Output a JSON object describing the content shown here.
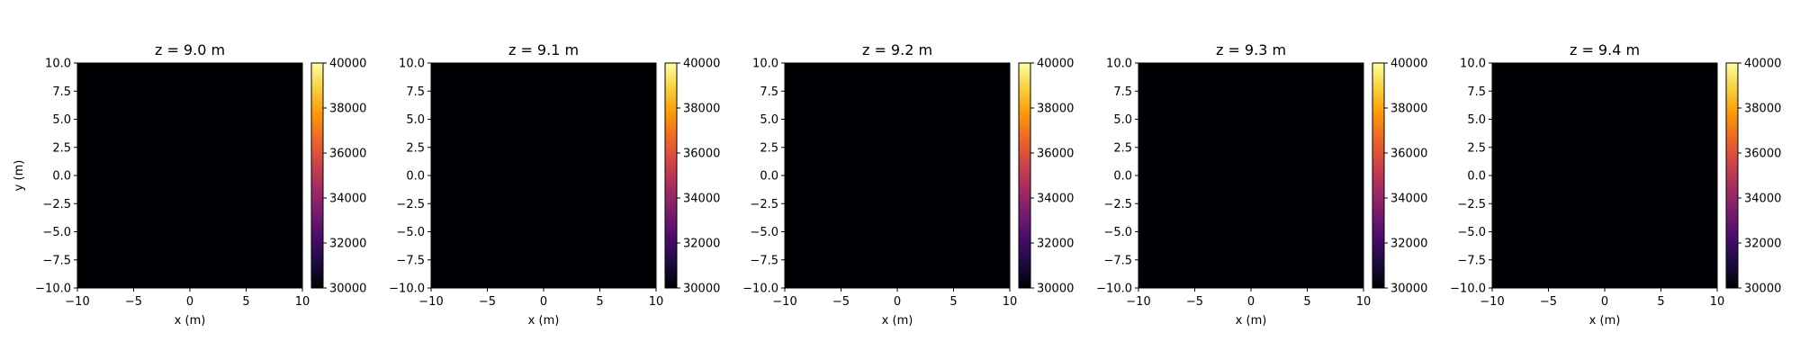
{
  "figure": {
    "type": "heatmap-grid",
    "colormap": "inferno",
    "colormap_stops": [
      "#000004",
      "#1b0c41",
      "#4a0c6b",
      "#781c6d",
      "#a52c60",
      "#cf4446",
      "#ed6925",
      "#fb9b06",
      "#f7d13d",
      "#fcffa4"
    ]
  },
  "chart_data": [
    {
      "type": "heatmap",
      "title": "z = 9.0 m",
      "xlabel": "x (m)",
      "ylabel": "y (m)",
      "xlim": [
        -10,
        10
      ],
      "ylim": [
        -10,
        10
      ],
      "x_ticks": [
        "−10",
        "−5",
        "0",
        "5",
        "10"
      ],
      "y_ticks": [
        "10.0",
        "7.5",
        "5.0",
        "2.5",
        "0.0",
        "−2.5",
        "−5.0",
        "−7.5",
        "−10.0"
      ],
      "fill_color": "#000004",
      "colorbar": {
        "vmin": 30000,
        "vmax": 40000,
        "ticks": [
          "40000",
          "38000",
          "36000",
          "34000",
          "32000",
          "30000"
        ]
      }
    },
    {
      "type": "heatmap",
      "title": "z = 9.1 m",
      "xlabel": "x (m)",
      "ylabel": "",
      "xlim": [
        -10,
        10
      ],
      "ylim": [
        -10,
        10
      ],
      "x_ticks": [
        "−10",
        "−5",
        "0",
        "5",
        "10"
      ],
      "y_ticks": [
        "10.0",
        "7.5",
        "5.0",
        "2.5",
        "0.0",
        "−2.5",
        "−5.0",
        "−7.5",
        "−10.0"
      ],
      "fill_color": "#000004",
      "colorbar": {
        "vmin": 30000,
        "vmax": 40000,
        "ticks": [
          "40000",
          "38000",
          "36000",
          "34000",
          "32000",
          "30000"
        ]
      }
    },
    {
      "type": "heatmap",
      "title": "z = 9.2 m",
      "xlabel": "x (m)",
      "ylabel": "",
      "xlim": [
        -10,
        10
      ],
      "ylim": [
        -10,
        10
      ],
      "x_ticks": [
        "−10",
        "−5",
        "0",
        "5",
        "10"
      ],
      "y_ticks": [
        "10.0",
        "7.5",
        "5.0",
        "2.5",
        "0.0",
        "−2.5",
        "−5.0",
        "−7.5",
        "−10.0"
      ],
      "fill_color": "#000004",
      "colorbar": {
        "vmin": 30000,
        "vmax": 40000,
        "ticks": [
          "40000",
          "38000",
          "36000",
          "34000",
          "32000",
          "30000"
        ]
      }
    },
    {
      "type": "heatmap",
      "title": "z = 9.3 m",
      "xlabel": "x (m)",
      "ylabel": "",
      "xlim": [
        -10,
        10
      ],
      "ylim": [
        -10,
        10
      ],
      "x_ticks": [
        "−10",
        "−5",
        "0",
        "5",
        "10"
      ],
      "y_ticks": [
        "10.0",
        "7.5",
        "5.0",
        "2.5",
        "0.0",
        "−2.5",
        "−5.0",
        "−7.5",
        "−10.0"
      ],
      "fill_color": "#000004",
      "colorbar": {
        "vmin": 30000,
        "vmax": 40000,
        "ticks": [
          "40000",
          "38000",
          "36000",
          "34000",
          "32000",
          "30000"
        ]
      }
    },
    {
      "type": "heatmap",
      "title": "z = 9.4 m",
      "xlabel": "x (m)",
      "ylabel": "",
      "xlim": [
        -10,
        10
      ],
      "ylim": [
        -10,
        10
      ],
      "x_ticks": [
        "−10",
        "−5",
        "0",
        "5",
        "10"
      ],
      "y_ticks": [
        "10.0",
        "7.5",
        "5.0",
        "2.5",
        "0.0",
        "−2.5",
        "−5.0",
        "−7.5",
        "−10.0"
      ],
      "fill_color": "#000004",
      "colorbar": {
        "vmin": 30000,
        "vmax": 40000,
        "ticks": [
          "40000",
          "38000",
          "36000",
          "34000",
          "32000",
          "30000"
        ]
      }
    }
  ]
}
